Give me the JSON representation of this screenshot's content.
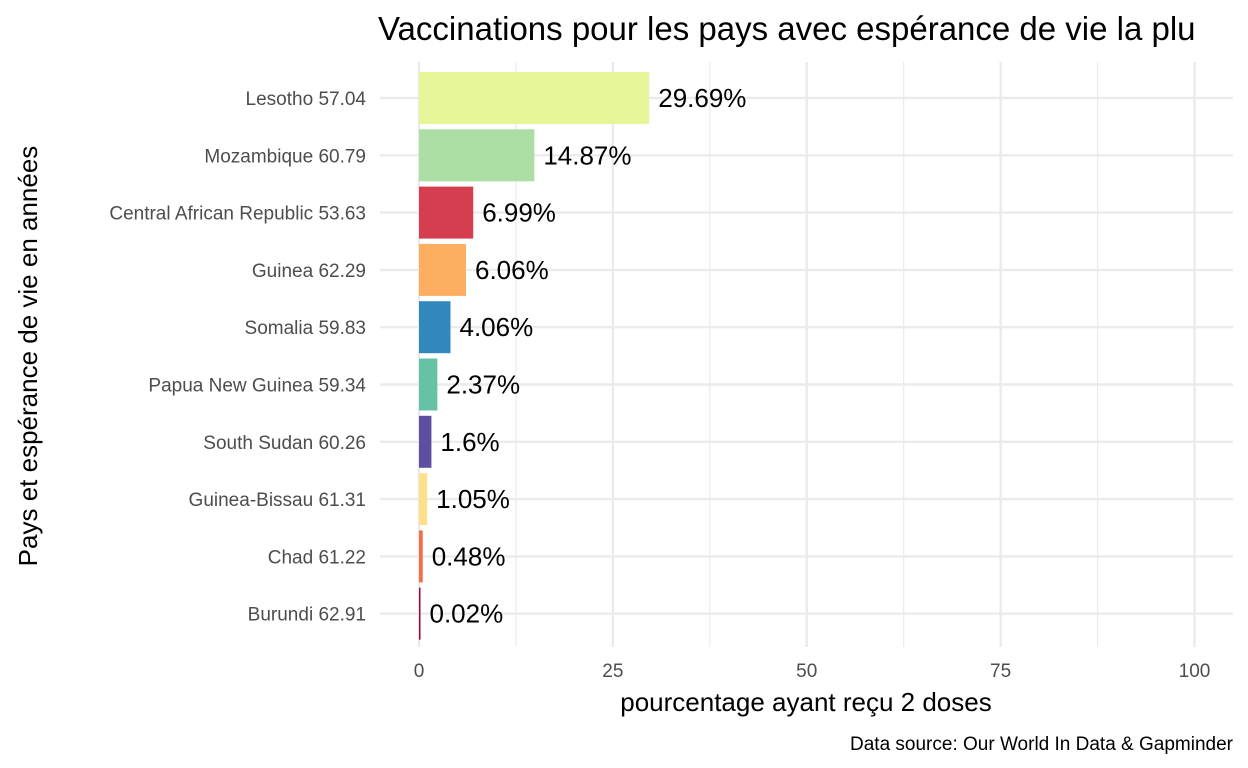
{
  "chart_data": {
    "type": "bar",
    "orientation": "horizontal",
    "title": "Vaccinations pour les pays avec espérance de vie la plu",
    "xlabel": "pourcentage ayant reçu 2 doses",
    "ylabel": "Pays et espérance de vie en années",
    "caption": "Data source: Our World In Data & Gapminder",
    "xlim": [
      0,
      100
    ],
    "x_ticks": [
      0,
      25,
      50,
      75,
      100
    ],
    "grid": true,
    "legend": "none",
    "categories": [
      "Lesotho 57.04",
      "Mozambique 60.79",
      "Central African Republic 53.63",
      "Guinea 62.29",
      "Somalia 59.83",
      "Papua New Guinea 59.34",
      "South Sudan 60.26",
      "Guinea-Bissau 61.31",
      "Chad 61.22",
      "Burundi 62.91"
    ],
    "values": [
      29.69,
      14.87,
      6.99,
      6.06,
      4.06,
      2.37,
      1.6,
      1.05,
      0.48,
      0.02
    ],
    "value_labels": [
      "29.69%",
      "14.87%",
      "6.99%",
      "6.06%",
      "4.06%",
      "2.37%",
      "1.6%",
      "1.05%",
      "0.48%",
      "0.02%"
    ],
    "colors": [
      "#e6f598",
      "#abdda4",
      "#d53e4f",
      "#fdae61",
      "#3288bd",
      "#66c2a5",
      "#5e4fa2",
      "#fee08b",
      "#f46d43",
      "#9e0142"
    ]
  }
}
